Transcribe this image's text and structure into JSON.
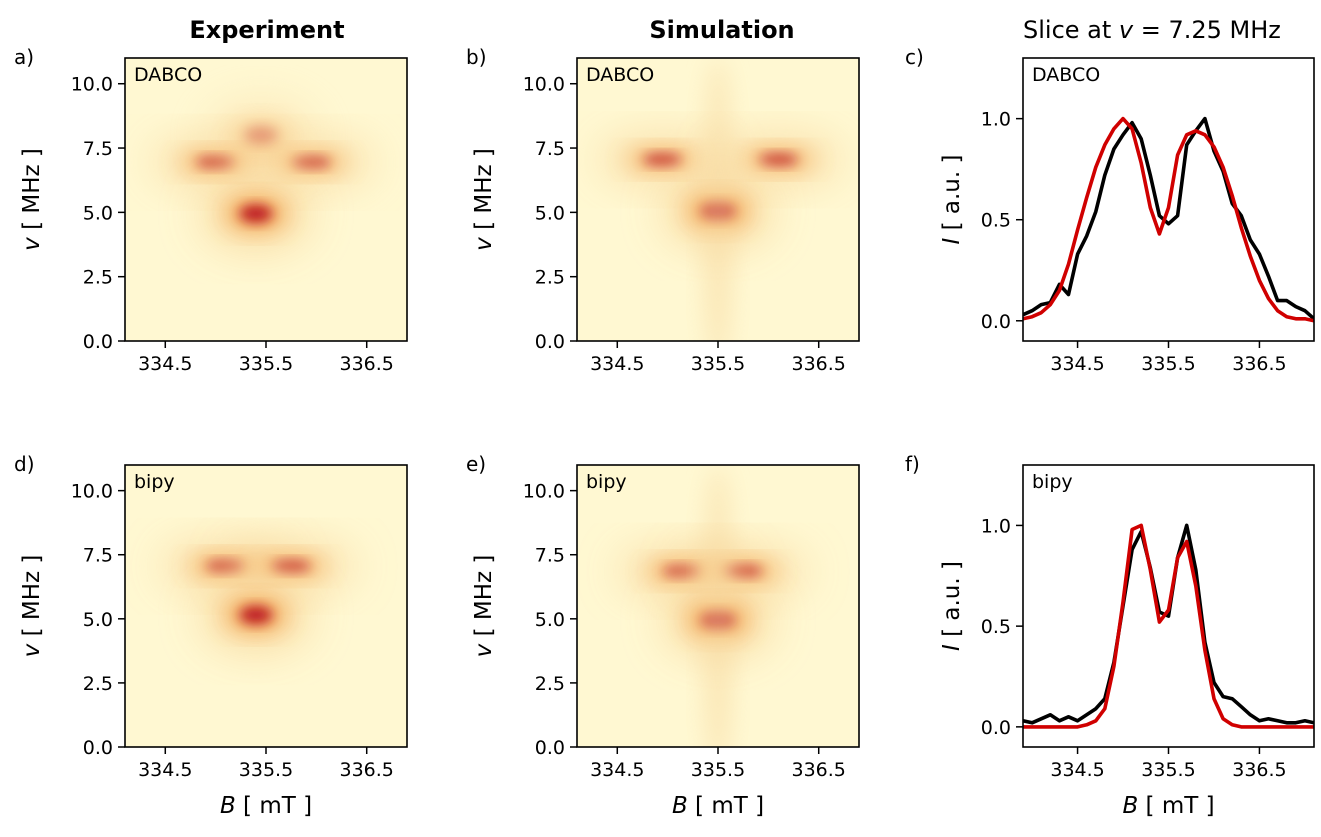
{
  "figure": {
    "columns": [
      "Experiment",
      "Simulation",
      "Slice at v = 7.25 MHz"
    ],
    "panel_labels": [
      "a)",
      "b)",
      "c)",
      "d)",
      "e)",
      "f)"
    ],
    "x_axis_label": "B [ mT ]",
    "y_axis_label_map": "v [ MHz ]",
    "y_axis_label_slice": "I [ a.u. ]",
    "samples": [
      "DABCO",
      "bipy"
    ]
  },
  "colors": {
    "experiment_line": "#000000",
    "simulation_line": "#d00000",
    "colormap_low": "#fff8d2",
    "colormap_mid": "#f2a050",
    "colormap_high": "#b30018"
  },
  "chart_data": [
    {
      "type": "heatmap",
      "panel": "a)",
      "sample": "DABCO",
      "column": "Experiment",
      "x_ticks": [
        "334.5",
        "335.5",
        "336.5"
      ],
      "x_tick_values": [
        334.5,
        335.5,
        336.5
      ],
      "y_ticks": [
        "0.0",
        "2.5",
        "5.0",
        "7.5",
        "10.0"
      ],
      "y_tick_values": [
        0,
        2.5,
        5.0,
        7.5,
        10.0
      ],
      "xlim": [
        334.1,
        336.9
      ],
      "ylim": [
        0,
        11
      ],
      "xlabel": "",
      "ylabel": "v [ MHz ]",
      "features": [
        {
          "x": 335.0,
          "y": 6.95,
          "intensity": 0.75
        },
        {
          "x": 335.95,
          "y": 6.95,
          "intensity": 0.7
        },
        {
          "x": 335.4,
          "y": 4.95,
          "intensity": 0.95
        },
        {
          "x": 335.45,
          "y": 8.0,
          "intensity": 0.3
        }
      ]
    },
    {
      "type": "heatmap",
      "panel": "b)",
      "sample": "DABCO",
      "column": "Simulation",
      "x_ticks": [
        "334.5",
        "335.5",
        "336.5"
      ],
      "x_tick_values": [
        334.5,
        335.5,
        336.5
      ],
      "y_ticks": [
        "0.0",
        "2.5",
        "5.0",
        "7.5",
        "10.0"
      ],
      "y_tick_values": [
        0,
        2.5,
        5.0,
        7.5,
        10.0
      ],
      "xlim": [
        334.1,
        336.9
      ],
      "ylim": [
        0,
        11
      ],
      "xlabel": "",
      "ylabel": "v [ MHz ]",
      "features": [
        {
          "x": 334.95,
          "y": 7.05,
          "intensity": 0.75
        },
        {
          "x": 336.1,
          "y": 7.05,
          "intensity": 0.75
        },
        {
          "x": 335.5,
          "y": 5.05,
          "intensity": 0.95
        },
        {
          "x": 335.5,
          "y": 2.5,
          "intensity": 0.15
        }
      ]
    },
    {
      "type": "line",
      "panel": "c)",
      "sample": "DABCO",
      "column": "Slice at v = 7.25 MHz",
      "x_ticks": [
        "334.5",
        "335.5",
        "336.5"
      ],
      "x_tick_values": [
        334.5,
        335.5,
        336.5
      ],
      "y_ticks": [
        "0.0",
        "0.5",
        "1.0"
      ],
      "y_tick_values": [
        0,
        0.5,
        1.0
      ],
      "xlim": [
        333.9,
        337.1
      ],
      "ylim": [
        -0.1,
        1.3
      ],
      "xlabel": "",
      "ylabel": "I [ a.u. ]",
      "series": [
        {
          "color": "#000000",
          "x": [
            333.9,
            334.0,
            334.1,
            334.2,
            334.3,
            334.4,
            334.5,
            334.6,
            334.7,
            334.8,
            334.9,
            335.0,
            335.1,
            335.2,
            335.3,
            335.4,
            335.5,
            335.6,
            335.7,
            335.8,
            335.9,
            336.0,
            336.1,
            336.2,
            336.3,
            336.4,
            336.5,
            336.6,
            336.7,
            336.8,
            336.9,
            337.0,
            337.1
          ],
          "y": [
            0.03,
            0.05,
            0.08,
            0.09,
            0.18,
            0.13,
            0.33,
            0.42,
            0.54,
            0.72,
            0.85,
            0.92,
            0.98,
            0.9,
            0.72,
            0.52,
            0.48,
            0.52,
            0.87,
            0.94,
            1.0,
            0.84,
            0.74,
            0.58,
            0.52,
            0.4,
            0.33,
            0.22,
            0.1,
            0.1,
            0.07,
            0.05,
            0.01
          ]
        },
        {
          "color": "#d00000",
          "x": [
            333.9,
            334.0,
            334.1,
            334.2,
            334.3,
            334.4,
            334.5,
            334.6,
            334.7,
            334.8,
            334.9,
            335.0,
            335.1,
            335.2,
            335.3,
            335.4,
            335.5,
            335.6,
            335.7,
            335.8,
            335.9,
            336.0,
            336.1,
            336.2,
            336.3,
            336.4,
            336.5,
            336.6,
            336.7,
            336.8,
            336.9,
            337.0,
            337.1
          ],
          "y": [
            0.01,
            0.02,
            0.04,
            0.08,
            0.15,
            0.28,
            0.45,
            0.61,
            0.76,
            0.87,
            0.95,
            1.0,
            0.95,
            0.78,
            0.56,
            0.43,
            0.56,
            0.82,
            0.92,
            0.94,
            0.92,
            0.86,
            0.76,
            0.62,
            0.46,
            0.32,
            0.2,
            0.11,
            0.05,
            0.02,
            0.01,
            0.01,
            0.0
          ]
        }
      ]
    },
    {
      "type": "heatmap",
      "panel": "d)",
      "sample": "bipy",
      "column": "Experiment",
      "x_ticks": [
        "334.5",
        "335.5",
        "336.5"
      ],
      "x_tick_values": [
        334.5,
        335.5,
        336.5
      ],
      "y_ticks": [
        "0.0",
        "2.5",
        "5.0",
        "7.5",
        "10.0"
      ],
      "y_tick_values": [
        0,
        2.5,
        5.0,
        7.5,
        10.0
      ],
      "xlim": [
        334.1,
        336.9
      ],
      "ylim": [
        0,
        11
      ],
      "xlabel": "B [ mT ]",
      "ylabel": "v [ MHz ]",
      "features": [
        {
          "x": 335.1,
          "y": 7.05,
          "intensity": 0.8
        },
        {
          "x": 335.75,
          "y": 7.05,
          "intensity": 0.75
        },
        {
          "x": 335.4,
          "y": 5.15,
          "intensity": 0.95
        }
      ]
    },
    {
      "type": "heatmap",
      "panel": "e)",
      "sample": "bipy",
      "column": "Simulation",
      "x_ticks": [
        "334.5",
        "335.5",
        "336.5"
      ],
      "x_tick_values": [
        334.5,
        335.5,
        336.5
      ],
      "y_ticks": [
        "0.0",
        "2.5",
        "5.0",
        "7.5",
        "10.0"
      ],
      "y_tick_values": [
        0,
        2.5,
        5.0,
        7.5,
        10.0
      ],
      "xlim": [
        334.1,
        336.9
      ],
      "ylim": [
        0,
        11
      ],
      "xlabel": "B [ mT ]",
      "ylabel": "v [ MHz ]",
      "features": [
        {
          "x": 335.15,
          "y": 6.85,
          "intensity": 0.8
        },
        {
          "x": 335.75,
          "y": 6.85,
          "intensity": 0.75
        },
        {
          "x": 335.5,
          "y": 4.95,
          "intensity": 0.95
        },
        {
          "x": 335.5,
          "y": 2.5,
          "intensity": 0.15
        }
      ]
    },
    {
      "type": "line",
      "panel": "f)",
      "sample": "bipy",
      "column": "Slice at v = 7.25 MHz",
      "x_ticks": [
        "334.5",
        "335.5",
        "336.5"
      ],
      "x_tick_values": [
        334.5,
        335.5,
        336.5
      ],
      "y_ticks": [
        "0.0",
        "0.5",
        "1.0"
      ],
      "y_tick_values": [
        0,
        0.5,
        1.0
      ],
      "xlim": [
        333.9,
        337.1
      ],
      "ylim": [
        -0.1,
        1.3
      ],
      "xlabel": "B [ mT ]",
      "ylabel": "I [ a.u. ]",
      "series": [
        {
          "color": "#000000",
          "x": [
            333.9,
            334.0,
            334.1,
            334.2,
            334.3,
            334.4,
            334.5,
            334.6,
            334.7,
            334.8,
            334.9,
            335.0,
            335.1,
            335.2,
            335.3,
            335.4,
            335.5,
            335.6,
            335.7,
            335.8,
            335.9,
            336.0,
            336.1,
            336.2,
            336.3,
            336.4,
            336.5,
            336.6,
            336.7,
            336.8,
            336.9,
            337.0,
            337.1
          ],
          "y": [
            0.03,
            0.02,
            0.04,
            0.06,
            0.03,
            0.05,
            0.03,
            0.06,
            0.09,
            0.14,
            0.32,
            0.6,
            0.88,
            0.97,
            0.79,
            0.57,
            0.55,
            0.84,
            1.0,
            0.78,
            0.42,
            0.22,
            0.15,
            0.14,
            0.1,
            0.06,
            0.03,
            0.04,
            0.03,
            0.02,
            0.02,
            0.03,
            0.02
          ]
        },
        {
          "color": "#d00000",
          "x": [
            333.9,
            334.0,
            334.1,
            334.2,
            334.3,
            334.4,
            334.5,
            334.6,
            334.7,
            334.8,
            334.9,
            335.0,
            335.1,
            335.2,
            335.3,
            335.4,
            335.5,
            335.6,
            335.7,
            335.8,
            335.9,
            336.0,
            336.1,
            336.2,
            336.3,
            336.4,
            336.5,
            336.6,
            336.7,
            336.8,
            336.9,
            337.0,
            337.1
          ],
          "y": [
            0.0,
            0.0,
            0.0,
            0.0,
            0.0,
            0.0,
            0.0,
            0.01,
            0.03,
            0.09,
            0.3,
            0.62,
            0.98,
            1.0,
            0.78,
            0.52,
            0.58,
            0.84,
            0.92,
            0.7,
            0.38,
            0.14,
            0.04,
            0.01,
            0.0,
            0.0,
            0.0,
            0.0,
            0.0,
            0.0,
            0.0,
            0.0,
            0.0
          ]
        }
      ]
    }
  ]
}
